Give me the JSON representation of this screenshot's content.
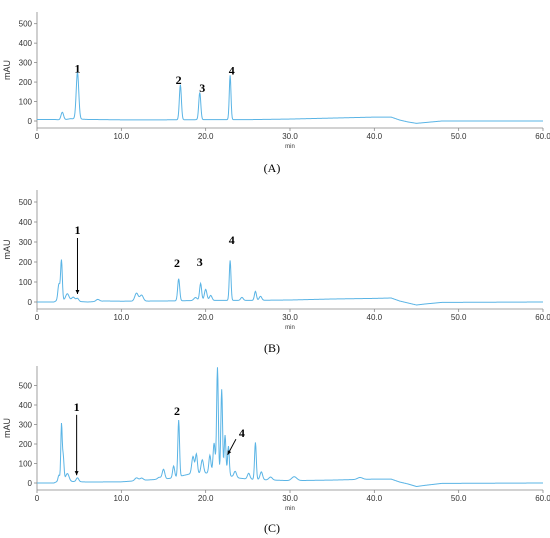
{
  "colors": {
    "trace": "#5ab4e5",
    "axis": "#888888",
    "text": "#333333"
  },
  "chart_data": [
    {
      "type": "line",
      "panel_label": "(A)",
      "xlabel": "min",
      "ylabel": "mAU",
      "xlim": [
        0,
        60
      ],
      "ylim": [
        0,
        560
      ],
      "xticks": [
        "0",
        "10.0",
        "20.0",
        "30.0",
        "40.0",
        "50.0",
        "60.0"
      ],
      "yticks": [
        "0",
        "100",
        "200",
        "300",
        "400",
        "500"
      ],
      "baseline": [
        [
          0,
          8
        ],
        [
          2,
          8
        ],
        [
          3,
          5
        ],
        [
          4,
          12
        ],
        [
          5,
          10
        ],
        [
          6,
          8
        ],
        [
          10,
          6
        ],
        [
          15,
          6
        ],
        [
          20,
          7
        ],
        [
          25,
          7
        ],
        [
          30,
          10
        ],
        [
          35,
          15
        ],
        [
          40,
          20
        ],
        [
          42,
          20
        ],
        [
          43,
          5
        ],
        [
          44,
          -5
        ],
        [
          45,
          -12
        ],
        [
          46,
          -8
        ],
        [
          48,
          0
        ],
        [
          60,
          0
        ]
      ],
      "peaks": [
        [
          3.0,
          40,
          0.15
        ],
        [
          4.8,
          240,
          0.15
        ],
        [
          17.0,
          180,
          0.12
        ],
        [
          19.3,
          140,
          0.12
        ],
        [
          22.9,
          228,
          0.1
        ]
      ],
      "annotations": [
        {
          "text": "1",
          "x": 4.8,
          "y": 250
        },
        {
          "text": "2",
          "x": 16.8,
          "y": 190
        },
        {
          "text": "3",
          "x": 19.6,
          "y": 150
        },
        {
          "text": "4",
          "x": 23.1,
          "y": 238
        }
      ]
    },
    {
      "type": "line",
      "panel_label": "(B)",
      "xlabel": "min",
      "ylabel": "mAU",
      "xlim": [
        0,
        60
      ],
      "ylim": [
        0,
        560
      ],
      "xticks": [
        "0",
        "10.0",
        "20.0",
        "30.0",
        "40.0",
        "50.0",
        "60.0"
      ],
      "yticks": [
        "0",
        "100",
        "200",
        "300",
        "400",
        "500"
      ],
      "baseline": [
        [
          0,
          0
        ],
        [
          2,
          0
        ],
        [
          2.5,
          10
        ],
        [
          4,
          5
        ],
        [
          6,
          0
        ],
        [
          8,
          5
        ],
        [
          10,
          4
        ],
        [
          15,
          5
        ],
        [
          20,
          8
        ],
        [
          25,
          8
        ],
        [
          30,
          10
        ],
        [
          35,
          15
        ],
        [
          40,
          18
        ],
        [
          42,
          20
        ],
        [
          43,
          5
        ],
        [
          44,
          -5
        ],
        [
          45,
          -15
        ],
        [
          46,
          -10
        ],
        [
          48,
          -2
        ],
        [
          60,
          0
        ]
      ],
      "peaks": [
        [
          2.6,
          80,
          0.12
        ],
        [
          2.9,
          200,
          0.1
        ],
        [
          3.6,
          35,
          0.2
        ],
        [
          4.3,
          20,
          0.2
        ],
        [
          4.8,
          15,
          0.15
        ],
        [
          7.2,
          10,
          0.2
        ],
        [
          11.8,
          40,
          0.2
        ],
        [
          12.4,
          30,
          0.2
        ],
        [
          16.8,
          110,
          0.12
        ],
        [
          18.8,
          15,
          0.2
        ],
        [
          19.4,
          85,
          0.12
        ],
        [
          20.0,
          55,
          0.15
        ],
        [
          20.6,
          25,
          0.15
        ],
        [
          22.9,
          200,
          0.1
        ],
        [
          24.3,
          15,
          0.15
        ],
        [
          25.9,
          45,
          0.12
        ],
        [
          26.5,
          20,
          0.15
        ]
      ],
      "annotations": [
        {
          "text": "1",
          "x": 4.8,
          "y": 340,
          "arrow_to": 40
        },
        {
          "text": "2",
          "x": 16.6,
          "y": 175
        },
        {
          "text": "3",
          "x": 19.3,
          "y": 180
        },
        {
          "text": "4",
          "x": 23.1,
          "y": 290
        }
      ]
    },
    {
      "type": "line",
      "panel_label": "(C)",
      "xlabel": "min",
      "ylabel": "mAU",
      "xlim": [
        0,
        60
      ],
      "ylim": [
        0,
        600
      ],
      "xticks": [
        "0",
        "10.0",
        "20.0",
        "30.0",
        "40.0",
        "50.0",
        "60.0"
      ],
      "yticks": [
        "0",
        "100",
        "200",
        "300",
        "400",
        "500"
      ],
      "baseline": [
        [
          0,
          0
        ],
        [
          2,
          0
        ],
        [
          2.5,
          10
        ],
        [
          4,
          8
        ],
        [
          6,
          5
        ],
        [
          10,
          6
        ],
        [
          12,
          12
        ],
        [
          14,
          18
        ],
        [
          15,
          20
        ],
        [
          16,
          25
        ],
        [
          18,
          45
        ],
        [
          20,
          50
        ],
        [
          21,
          55
        ],
        [
          22,
          50
        ],
        [
          23,
          35
        ],
        [
          24,
          25
        ],
        [
          25,
          20
        ],
        [
          26,
          18
        ],
        [
          28,
          15
        ],
        [
          30,
          12
        ],
        [
          35,
          15
        ],
        [
          40,
          20
        ],
        [
          42,
          20
        ],
        [
          43,
          5
        ],
        [
          44,
          -5
        ],
        [
          45,
          -18
        ],
        [
          46,
          -12
        ],
        [
          48,
          -2
        ],
        [
          60,
          0
        ]
      ],
      "peaks": [
        [
          2.6,
          30,
          0.1
        ],
        [
          2.9,
          280,
          0.08
        ],
        [
          3.1,
          130,
          0.1
        ],
        [
          3.6,
          40,
          0.2
        ],
        [
          4.8,
          20,
          0.15
        ],
        [
          11.8,
          15,
          0.2
        ],
        [
          12.4,
          12,
          0.2
        ],
        [
          14.5,
          10,
          0.2
        ],
        [
          15.0,
          50,
          0.15
        ],
        [
          16.2,
          60,
          0.12
        ],
        [
          16.8,
          290,
          0.1
        ],
        [
          18.5,
          90,
          0.15
        ],
        [
          18.9,
          100,
          0.12
        ],
        [
          19.6,
          70,
          0.15
        ],
        [
          20.5,
          90,
          0.12
        ],
        [
          21.0,
          150,
          0.12
        ],
        [
          21.4,
          540,
          0.1
        ],
        [
          21.9,
          430,
          0.1
        ],
        [
          22.3,
          200,
          0.1
        ],
        [
          22.7,
          150,
          0.1
        ],
        [
          23.5,
          30,
          0.15
        ],
        [
          25.1,
          30,
          0.15
        ],
        [
          25.9,
          190,
          0.1
        ],
        [
          26.6,
          40,
          0.15
        ],
        [
          27.7,
          15,
          0.2
        ],
        [
          30.5,
          20,
          0.3
        ],
        [
          38.3,
          10,
          0.3
        ]
      ],
      "annotations": [
        {
          "text": "1",
          "x": 4.7,
          "y": 370,
          "arrow_to": 40
        },
        {
          "text": "2",
          "x": 16.6,
          "y": 350
        },
        {
          "text": "4",
          "x": 24.3,
          "y": 235,
          "arrow_to_x": 22.6,
          "arrow_to": 145
        }
      ]
    }
  ]
}
